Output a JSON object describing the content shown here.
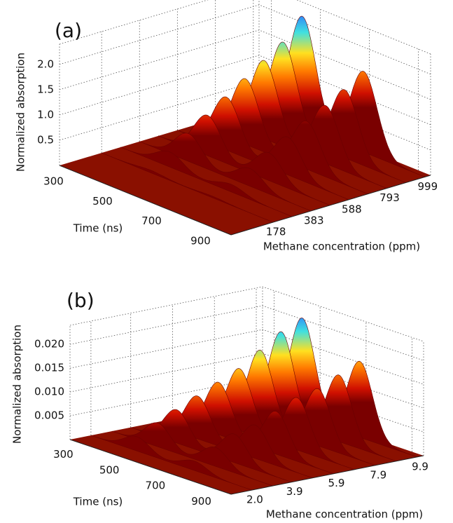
{
  "chart_data": [
    {
      "type": "waterfall3d",
      "panel_label": "(a)",
      "x_label": "Time (ns)",
      "y_label": "Methane concentration (ppm)",
      "z_label": "Normalized absorption",
      "xlim": [
        250,
        950
      ],
      "xticks": [
        300,
        500,
        700,
        900
      ],
      "ylim": [
        -50,
        1030
      ],
      "yticks": [
        178,
        383,
        588,
        793,
        999
      ],
      "zlim": [
        0,
        2.4
      ],
      "zticks": [
        0.5,
        {
          "value": 1,
          "label": "1.0"
        },
        1.5,
        {
          "value": 2,
          "label": "2.0"
        }
      ],
      "grid": true,
      "peak_times": [
        450,
        700
      ],
      "peak_width": 55,
      "slices": [
        {
          "concentration": 178,
          "peaks": [
            0.05,
            0.03
          ]
        },
        {
          "concentration": 281,
          "peaks": [
            0.3,
            0.15
          ]
        },
        {
          "concentration": 383,
          "peaks": [
            0.55,
            0.35
          ]
        },
        {
          "concentration": 486,
          "peaks": [
            0.8,
            0.55
          ]
        },
        {
          "concentration": 588,
          "peaks": [
            1.05,
            0.75
          ]
        },
        {
          "concentration": 691,
          "peaks": [
            1.3,
            0.95
          ]
        },
        {
          "concentration": 793,
          "peaks": [
            1.55,
            1.15
          ]
        },
        {
          "concentration": 896,
          "peaks": [
            1.8,
            1.35
          ]
        },
        {
          "concentration": 999,
          "peaks": [
            2.2,
            1.6
          ]
        }
      ]
    },
    {
      "type": "waterfall3d",
      "panel_label": "(b)",
      "x_label": "Time (ns)",
      "y_label": "Methane concentration (ppm)",
      "z_label": "Normalized absorption",
      "xlim": [
        250,
        950
      ],
      "xticks": [
        300,
        500,
        700,
        900
      ],
      "ylim": [
        1,
        10.2
      ],
      "yticks": [
        {
          "value": 2,
          "label": "2.0"
        },
        3.9,
        5.9,
        7.9,
        9.9
      ],
      "zlim": [
        0,
        0.024
      ],
      "zticks": [
        0.005,
        {
          "value": 0.01,
          "label": "0.010"
        },
        0.015,
        {
          "value": 0.02,
          "label": "0.020"
        }
      ],
      "grid": true,
      "peak_times": [
        450,
        700
      ],
      "peak_width": 55,
      "slices": [
        {
          "concentration": 2.0,
          "peaks": [
            0.003,
            0.002
          ]
        },
        {
          "concentration": 3.0,
          "peaks": [
            0.005,
            0.004
          ]
        },
        {
          "concentration": 3.9,
          "peaks": [
            0.007,
            0.006
          ]
        },
        {
          "concentration": 4.9,
          "peaks": [
            0.009,
            0.007
          ]
        },
        {
          "concentration": 5.9,
          "peaks": [
            0.011,
            0.009
          ]
        },
        {
          "concentration": 6.9,
          "peaks": [
            0.013,
            0.011
          ]
        },
        {
          "concentration": 7.9,
          "peaks": [
            0.016,
            0.012
          ]
        },
        {
          "concentration": 8.9,
          "peaks": [
            0.019,
            0.014
          ]
        },
        {
          "concentration": 9.9,
          "peaks": [
            0.021,
            0.016
          ]
        }
      ]
    }
  ]
}
